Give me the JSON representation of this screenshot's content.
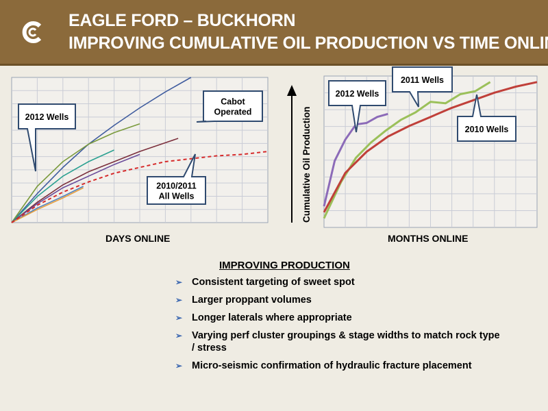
{
  "header": {
    "line1": "EAGLE FORD – BUCKHORN",
    "line2": "IMPROVING CUMULATIVE OIL PRODUCTION VS TIME ONLINE",
    "logo_icon": "cabot-c-logo-icon",
    "bg_color": "#8b6a3b"
  },
  "chart_data": [
    {
      "type": "line",
      "xlabel": "DAYS ONLINE",
      "ylabel": "",
      "xlim": [
        0,
        100
      ],
      "ylim": [
        0,
        100
      ],
      "callouts": {
        "wells_2012": "2012 Wells",
        "cabot": "Cabot\nOperated",
        "wells_2010_2011": "2010/2011\nAll Wells"
      },
      "series": [
        {
          "color": "#3f5c9e",
          "style": "solid",
          "x": [
            0,
            10,
            20,
            30,
            40,
            50,
            60,
            70
          ],
          "y": [
            0,
            20,
            38,
            54,
            67,
            79,
            90,
            100
          ]
        },
        {
          "color": "#7a9a3c",
          "style": "solid",
          "x": [
            0,
            10,
            20,
            30,
            40,
            50
          ],
          "y": [
            0,
            25,
            42,
            54,
            62,
            68
          ]
        },
        {
          "color": "#2aa090",
          "style": "solid",
          "x": [
            0,
            10,
            20,
            30,
            40
          ],
          "y": [
            0,
            18,
            32,
            42,
            50
          ]
        },
        {
          "color": "#7b2f3c",
          "style": "solid",
          "x": [
            0,
            10,
            20,
            30,
            40,
            50,
            60,
            65
          ],
          "y": [
            0,
            14,
            26,
            35,
            42,
            49,
            55,
            58
          ]
        },
        {
          "color": "#6b4c9a",
          "style": "solid",
          "x": [
            0,
            10,
            20,
            30,
            40,
            50
          ],
          "y": [
            0,
            13,
            24,
            32,
            40,
            47
          ]
        },
        {
          "color": "#4f81bd",
          "style": "solid",
          "x": [
            0,
            10,
            20,
            28
          ],
          "y": [
            0,
            10,
            18,
            25
          ]
        },
        {
          "color": "#e8a040",
          "style": "solid",
          "x": [
            0,
            10,
            20,
            28
          ],
          "y": [
            0,
            9,
            17,
            24
          ]
        },
        {
          "color": "#d62a2a",
          "style": "dashed",
          "x": [
            0,
            5,
            10,
            20,
            30,
            40,
            50,
            60,
            70,
            80,
            90,
            100
          ],
          "y": [
            0,
            6,
            12,
            21,
            28,
            34,
            38,
            42,
            44,
            46,
            47,
            49
          ]
        }
      ]
    },
    {
      "type": "line",
      "xlabel": "MONTHS ONLINE",
      "ylabel": "Cumulative Oil Production",
      "xlim": [
        0,
        100
      ],
      "ylim": [
        0,
        100
      ],
      "callouts": {
        "wells_2012": "2012 Wells",
        "wells_2011": "2011 Wells",
        "wells_2010": "2010 Wells"
      },
      "series": [
        {
          "name": "2012 Wells",
          "color": "#8c6bb8",
          "x": [
            0,
            5,
            10,
            15,
            20,
            25,
            30
          ],
          "y": [
            14,
            44,
            58,
            68,
            69,
            73,
            75
          ]
        },
        {
          "name": "2011 Wells",
          "color": "#9bc05a",
          "x": [
            0,
            8,
            15,
            22,
            29,
            36,
            43,
            50,
            57,
            64,
            71,
            78
          ],
          "y": [
            6,
            30,
            46,
            56,
            64,
            71,
            76,
            83,
            82,
            88,
            90,
            96
          ]
        },
        {
          "name": "2010 Wells",
          "color": "#c0403a",
          "x": [
            0,
            10,
            20,
            30,
            40,
            50,
            60,
            70,
            80,
            90,
            100
          ],
          "y": [
            10,
            36,
            50,
            60,
            67,
            73,
            79,
            84,
            89,
            93,
            96
          ]
        }
      ]
    }
  ],
  "bullets": {
    "heading": "IMPROVING PRODUCTION",
    "items": [
      "Consistent targeting of sweet spot",
      "Larger proppant volumes",
      "Longer laterals where appropriate",
      "Varying perf cluster groupings & stage widths to match rock type / stress",
      "Micro-seismic confirmation of hydraulic fracture placement"
    ],
    "marker_icon": "arrowhead-bullet-icon"
  }
}
